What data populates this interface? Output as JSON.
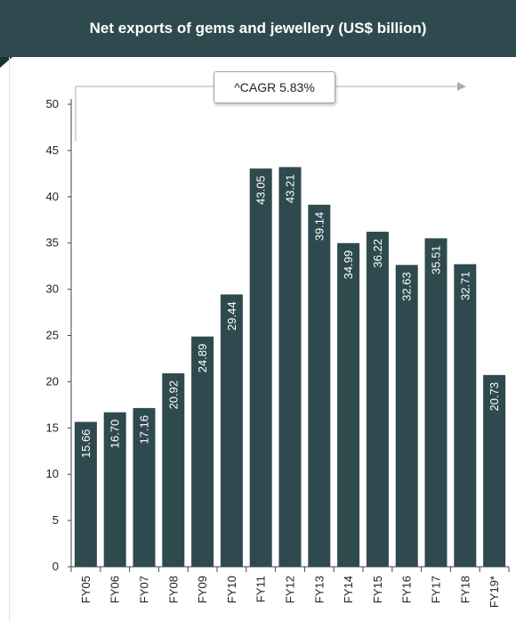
{
  "colors": {
    "header_bg": "#2f4a4e",
    "bar": "#2f4a4e",
    "annotation_arrow": "#a7b0b2"
  },
  "annotation": "^CAGR 5.83%",
  "chart_data": {
    "type": "bar",
    "title": "Net exports of gems and jewellery (US$ billion)",
    "categories": [
      "FY05",
      "FY06",
      "FY07",
      "FY08",
      "FY09",
      "FY10",
      "FY11",
      "FY12",
      "FY13",
      "FY14",
      "FY15",
      "FY16",
      "FY17",
      "FY18",
      "FY19*"
    ],
    "values": [
      15.66,
      16.7,
      17.16,
      20.92,
      24.89,
      29.44,
      43.05,
      43.21,
      39.14,
      34.99,
      36.22,
      32.63,
      35.51,
      32.71,
      20.73
    ],
    "value_labels": [
      "15.66",
      "16.70",
      "17.16",
      "20.92",
      "24.89",
      "29.44",
      "43.05",
      "43.21",
      "39.14",
      "34.99",
      "36.22",
      "32.63",
      "35.51",
      "32.71",
      "20.73"
    ],
    "y_ticks": [
      "0",
      "5",
      "10",
      "15",
      "20",
      "25",
      "30",
      "35",
      "40",
      "45",
      "50"
    ],
    "ylim": [
      0,
      50
    ],
    "grid": false,
    "legend": "none"
  }
}
